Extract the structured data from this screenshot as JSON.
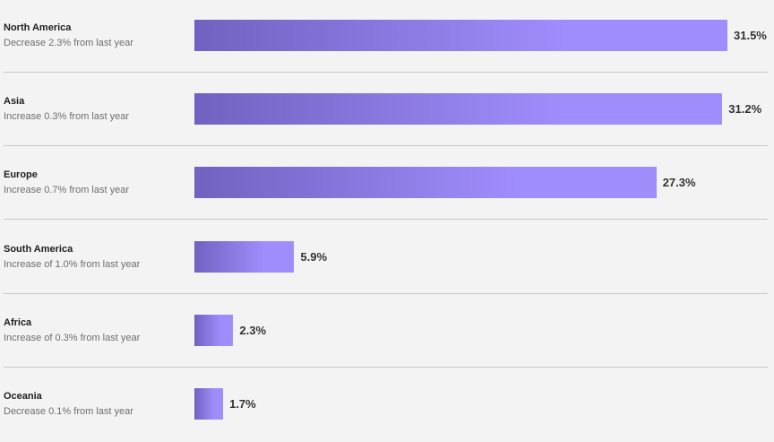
{
  "chart_data": {
    "type": "bar",
    "orientation": "horizontal",
    "categories": [
      "North America",
      "Asia",
      "Europe",
      "South America",
      "Africa",
      "Oceania"
    ],
    "values": [
      31.5,
      31.2,
      27.3,
      5.9,
      2.3,
      1.7
    ],
    "value_labels": [
      "31.5%",
      "31.2%",
      "27.3%",
      "5.9%",
      "2.3%",
      "1.7%"
    ],
    "changes": [
      "Decrease 2.3% from last year",
      "Increase 0.3% from last year",
      "Increase 0.7% from last year",
      "Increase of 1.0% from last year",
      "Increase of 0.3% from last year",
      "Decrease 0.1% from last year"
    ],
    "xlim": [
      0,
      31.5
    ],
    "grid": false,
    "bar_gradient": [
      "#7162c0",
      "#a08dfc"
    ]
  }
}
